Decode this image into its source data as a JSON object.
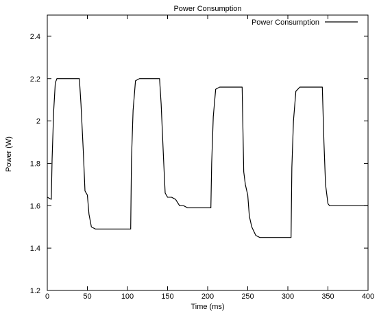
{
  "chart_data": {
    "type": "line",
    "title": "Power Consumption",
    "xlabel": "Time (ms)",
    "ylabel": "Power (W)",
    "xlim": [
      0,
      400
    ],
    "ylim": [
      1.2,
      2.5
    ],
    "x_ticks": [
      0,
      50,
      100,
      150,
      200,
      250,
      300,
      350,
      400
    ],
    "y_ticks": [
      1.2,
      1.4,
      1.6,
      1.8,
      2,
      2.2,
      2.4
    ],
    "x_tick_labels": [
      "0",
      "50",
      "100",
      "150",
      "200",
      "250",
      "300",
      "350",
      "400"
    ],
    "y_tick_labels": [
      "1.2",
      "1.4",
      "1.6",
      "1.8",
      "2",
      "2.2",
      "2.4"
    ],
    "grid": false,
    "legend": {
      "position": "top-right",
      "entries": [
        "Power Consumption"
      ]
    },
    "series": [
      {
        "name": "Power Consumption",
        "color": "#000000",
        "x": [
          0,
          5,
          6,
          8,
          10,
          12,
          15,
          20,
          25,
          30,
          35,
          40,
          42,
          45,
          47,
          50,
          52,
          55,
          60,
          65,
          70,
          75,
          80,
          85,
          90,
          95,
          100,
          104,
          105,
          107,
          110,
          115,
          120,
          125,
          130,
          135,
          140,
          142,
          145,
          147,
          150,
          155,
          160,
          165,
          170,
          175,
          180,
          185,
          190,
          195,
          200,
          204,
          205,
          207,
          210,
          215,
          220,
          225,
          230,
          235,
          240,
          243,
          245,
          247,
          250,
          252,
          255,
          260,
          265,
          270,
          275,
          280,
          285,
          290,
          295,
          300,
          304,
          305,
          307,
          310,
          315,
          320,
          325,
          330,
          335,
          340,
          343,
          345,
          347,
          350,
          352,
          355,
          360,
          365,
          370,
          375,
          380,
          385,
          390,
          395,
          400
        ],
        "values": [
          1.64,
          1.63,
          1.82,
          2.05,
          2.18,
          2.2,
          2.2,
          2.2,
          2.2,
          2.2,
          2.2,
          2.2,
          2.08,
          1.85,
          1.67,
          1.65,
          1.56,
          1.5,
          1.49,
          1.49,
          1.49,
          1.49,
          1.49,
          1.49,
          1.49,
          1.49,
          1.49,
          1.49,
          1.82,
          2.05,
          2.19,
          2.2,
          2.2,
          2.2,
          2.2,
          2.2,
          2.2,
          2.08,
          1.82,
          1.66,
          1.64,
          1.64,
          1.63,
          1.6,
          1.6,
          1.59,
          1.59,
          1.59,
          1.59,
          1.59,
          1.59,
          1.59,
          1.8,
          2.02,
          2.15,
          2.16,
          2.16,
          2.16,
          2.16,
          2.16,
          2.16,
          2.16,
          1.76,
          1.7,
          1.65,
          1.55,
          1.5,
          1.46,
          1.45,
          1.45,
          1.45,
          1.45,
          1.45,
          1.45,
          1.45,
          1.45,
          1.45,
          1.78,
          2.0,
          2.14,
          2.16,
          2.16,
          2.16,
          2.16,
          2.16,
          2.16,
          2.16,
          1.9,
          1.7,
          1.61,
          1.6,
          1.6,
          1.6,
          1.6,
          1.6,
          1.6,
          1.6,
          1.6,
          1.6,
          1.6,
          1.6
        ]
      }
    ]
  }
}
